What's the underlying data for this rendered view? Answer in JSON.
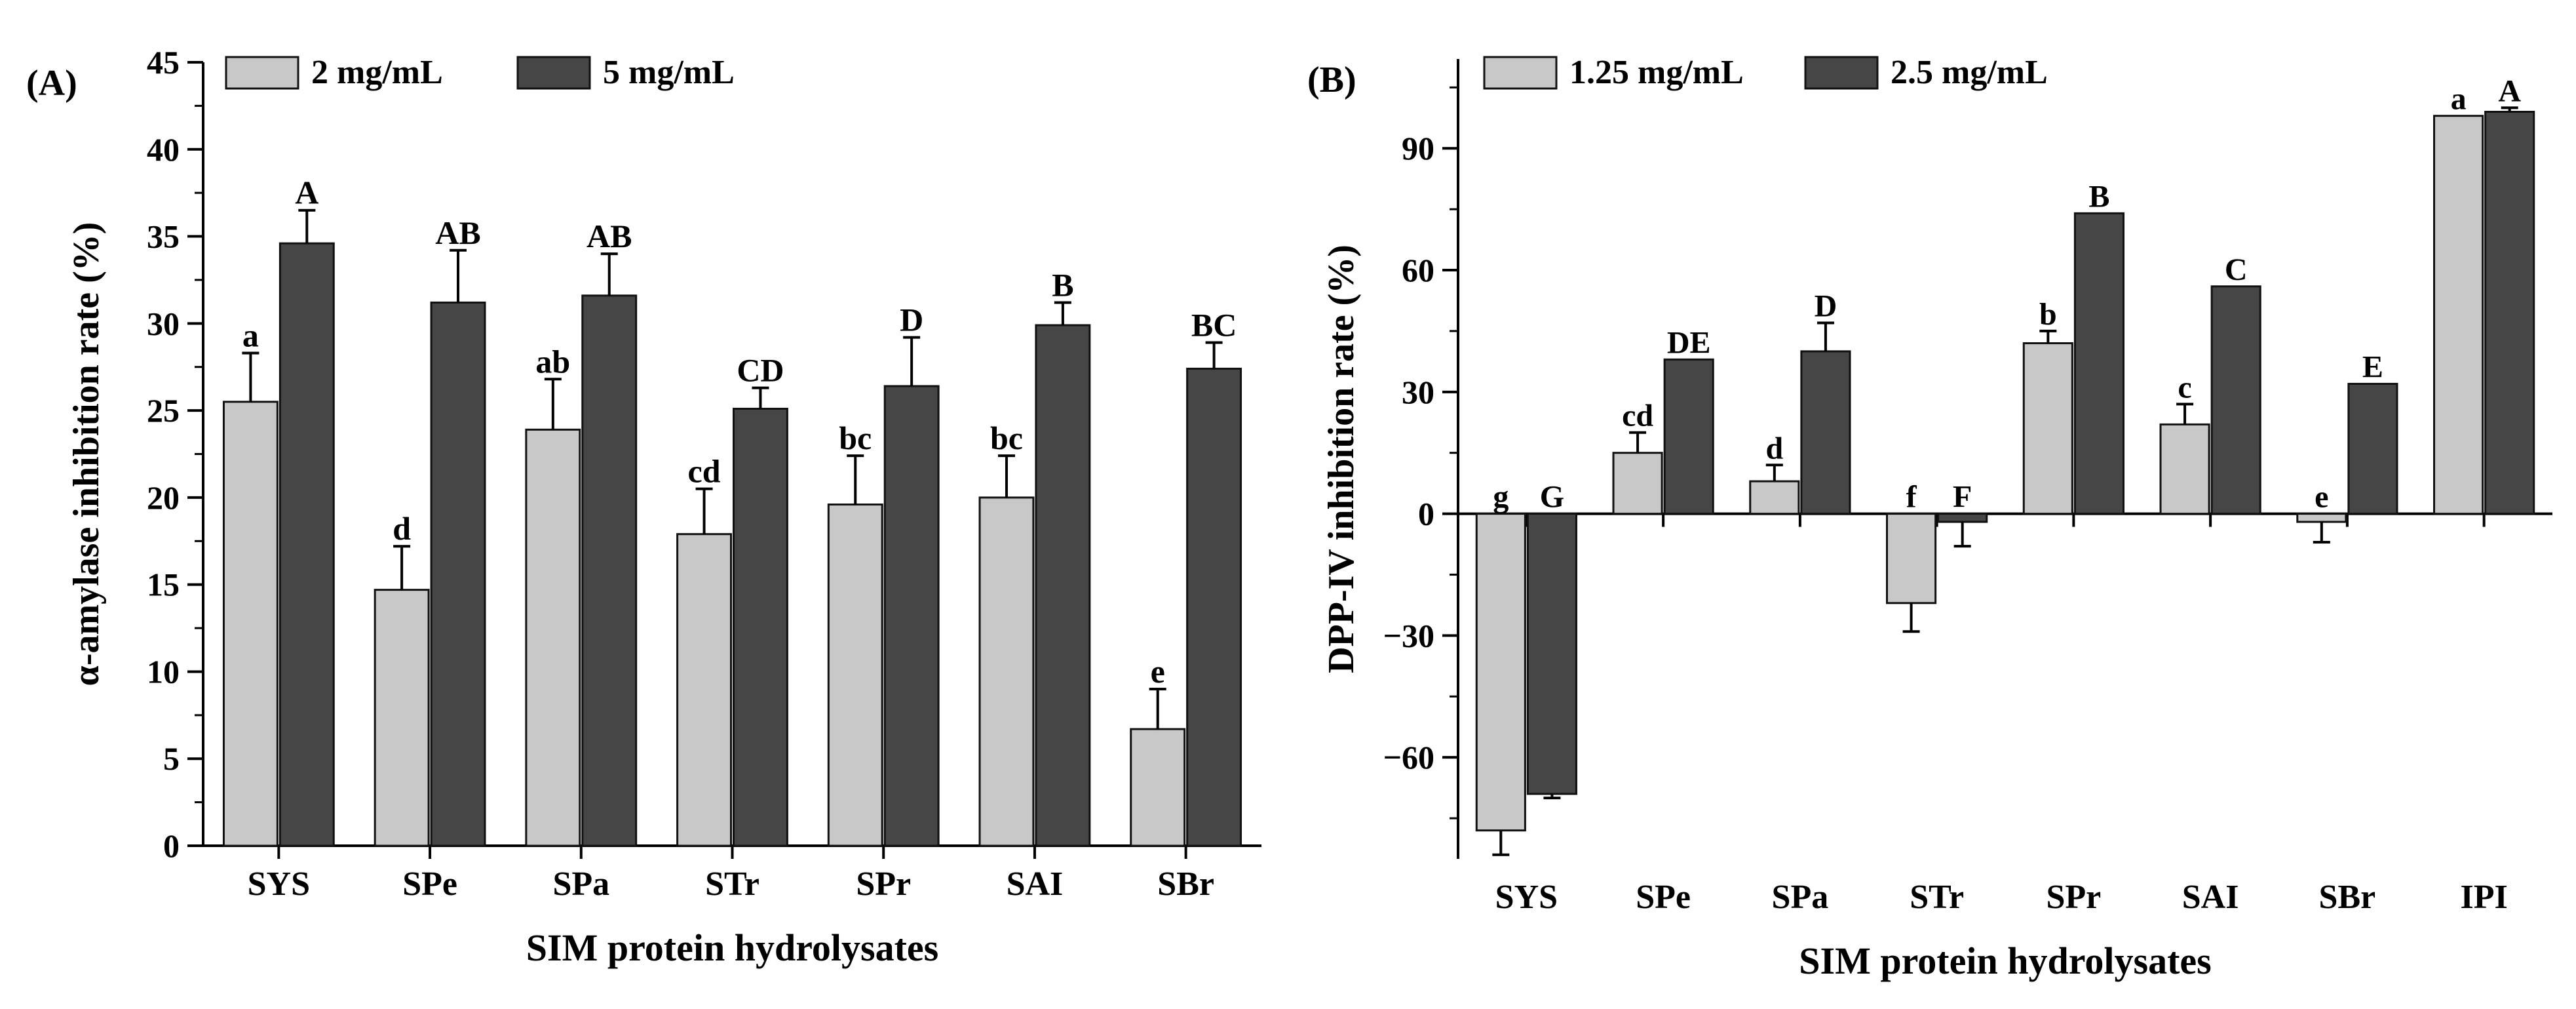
{
  "chart_data": [
    {
      "panel_label": "(A)",
      "type": "bar",
      "categories": [
        "SYS",
        "SPe",
        "SPa",
        "STr",
        "SPr",
        "SAI",
        "SBr"
      ],
      "series": [
        {
          "name": "2 mg/mL",
          "color": "#c8c8c8",
          "values": [
            25.5,
            14.7,
            23.9,
            17.9,
            19.6,
            20.0,
            6.7
          ],
          "errors": [
            2.8,
            2.5,
            2.9,
            2.6,
            2.8,
            2.4,
            2.3
          ],
          "letters": [
            "a",
            "d",
            "ab",
            "cd",
            "bc",
            "bc",
            "e"
          ]
        },
        {
          "name": "5 mg/mL",
          "color": "#464646",
          "values": [
            34.6,
            31.2,
            31.6,
            25.1,
            26.4,
            29.9,
            27.4
          ],
          "errors": [
            1.9,
            3.0,
            2.4,
            1.2,
            2.8,
            1.3,
            1.5
          ],
          "letters": [
            "A",
            "AB",
            "AB",
            "CD",
            "D",
            "B",
            "BC"
          ]
        }
      ],
      "xlabel": "SIM protein hydrolysates",
      "ylabel": "α-amylase inhibition rate (%)",
      "ylim": [
        0,
        45
      ],
      "yticks": [
        0,
        5,
        10,
        15,
        20,
        25,
        30,
        35,
        40,
        45
      ],
      "legend_position": "top-left",
      "grid": false
    },
    {
      "panel_label": "(B)",
      "type": "bar",
      "categories": [
        "SYS",
        "SPe",
        "SPa",
        "STr",
        "SPr",
        "SAI",
        "SBr",
        "IPI"
      ],
      "series": [
        {
          "name": "1.25 mg/mL",
          "color": "#c8c8c8",
          "values": [
            -78,
            15,
            8,
            -22,
            42,
            22,
            -2,
            98
          ],
          "errors": [
            6,
            5,
            4,
            7,
            3,
            5,
            5,
            0
          ],
          "letters": [
            "g",
            "cd",
            "d",
            "f",
            "b",
            "c",
            "e",
            "a"
          ]
        },
        {
          "name": "2.5 mg/mL",
          "color": "#464646",
          "values": [
            -69,
            38,
            40,
            -2,
            74,
            56,
            32,
            99
          ],
          "errors": [
            1,
            0,
            7,
            6,
            0,
            0,
            0,
            1
          ],
          "letters": [
            "G",
            "DE",
            "D",
            "F",
            "B",
            "C",
            "E",
            "A"
          ]
        }
      ],
      "xlabel": "SIM protein hydrolysates",
      "ylabel": "DPP-IV inhibition rate (%)",
      "ylim": [
        -85,
        112
      ],
      "yticks": [
        -60,
        -30,
        0,
        30,
        60,
        90
      ],
      "legend_position": "top-left",
      "grid": false
    }
  ]
}
